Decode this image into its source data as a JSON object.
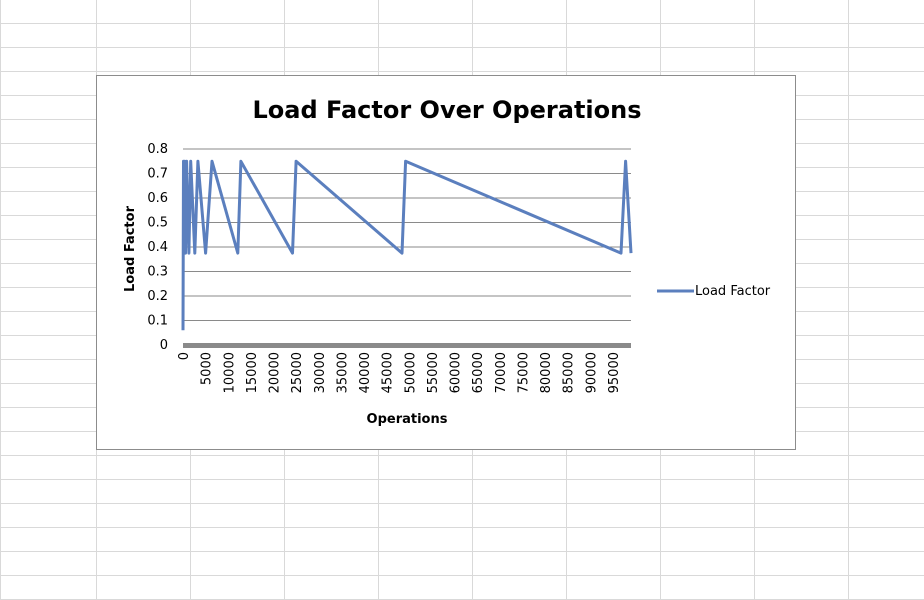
{
  "colors": {
    "series": "#5b7fbe",
    "axis": "#8a8a8a",
    "gridline": "#8a8a8a",
    "sheet_gridline": "#d9d9d9"
  },
  "chart_data": {
    "type": "line",
    "title": "Load Factor Over Operations",
    "xlabel": "Operations",
    "ylabel": "Load Factor",
    "xlim": [
      0,
      99000
    ],
    "ylim": [
      0,
      0.8
    ],
    "y_ticks": [
      "0",
      "0.1",
      "0.2",
      "0.3",
      "0.4",
      "0.5",
      "0.6",
      "0.7",
      "0.8"
    ],
    "x_ticks": [
      "0",
      "5000",
      "10000",
      "15000",
      "20000",
      "25000",
      "30000",
      "35000",
      "40000",
      "45000",
      "50000",
      "55000",
      "60000",
      "65000",
      "70000",
      "75000",
      "80000",
      "85000",
      "90000",
      "95000"
    ],
    "gridlines": "horizontal",
    "legend_position": "right",
    "series": [
      {
        "name": "Load Factor",
        "x": [
          0,
          100,
          200,
          350,
          550,
          800,
          1300,
          1700,
          2600,
          3300,
          5000,
          6400,
          12100,
          12800,
          24200,
          25000,
          48400,
          49200,
          96800,
          97800,
          99000
        ],
        "y": [
          0.06,
          0.75,
          0.375,
          0.75,
          0.375,
          0.75,
          0.375,
          0.75,
          0.375,
          0.75,
          0.375,
          0.75,
          0.375,
          0.75,
          0.375,
          0.75,
          0.375,
          0.75,
          0.375,
          0.75,
          0.375
        ]
      }
    ]
  }
}
